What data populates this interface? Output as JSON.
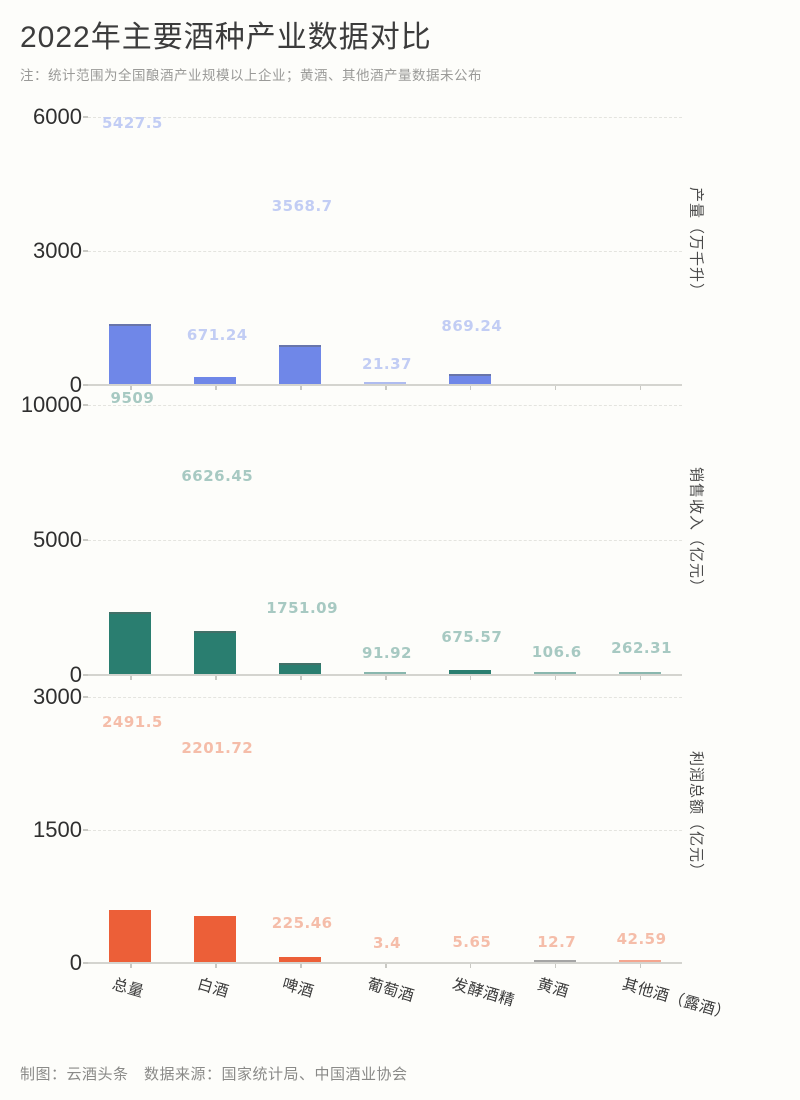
{
  "page": {
    "title": "2022年主要酒种产业数据对比",
    "note": "注：统计范围为全国酿酒产业规模以上企业；黄酒、其他酒产量数据未公布",
    "footer": "制图：云酒头条　数据来源：国家统计局、中国酒业协会"
  },
  "colors": {
    "production_bar": "#6f87e8",
    "production_label": "#c2cdf4",
    "revenue_bar": "#2a7e70",
    "revenue_label": "#a7c9c2",
    "profit_bar": "#ec5f38",
    "profit_label": "#f5bda9",
    "profit_tiny_huangjiu_bar": "#9b9b9b",
    "axis_text": "#2f2f2f",
    "gridline": "#e4e4df",
    "axis_line": "#d4d4cf",
    "category_text": "#3a3a3a"
  },
  "categories": [
    "总量",
    "白酒",
    "啤酒",
    "葡萄酒",
    "发酵酒精",
    "黄酒",
    "其他酒（露酒）"
  ],
  "chart_data": [
    {
      "type": "bar",
      "title": "产量（万千升）",
      "ylabel": "产量（万千升）",
      "categories": [
        "总量",
        "白酒",
        "啤酒",
        "葡萄酒",
        "发酵酒精",
        "黄酒",
        "其他酒（露酒）"
      ],
      "values": [
        5427.5,
        671.24,
        3568.7,
        21.37,
        869.24,
        null,
        null
      ],
      "ylim": [
        0,
        6000
      ],
      "yticks": [
        0,
        3000,
        6000
      ],
      "grid": "dashed",
      "legend": "none"
    },
    {
      "type": "bar",
      "title": "销售收入（亿元）",
      "ylabel": "销售收入（亿元）",
      "categories": [
        "总量",
        "白酒",
        "啤酒",
        "葡萄酒",
        "发酵酒精",
        "黄酒",
        "其他酒（露酒）"
      ],
      "values": [
        9509,
        6626.45,
        1751.09,
        91.92,
        675.57,
        106.6,
        262.31
      ],
      "ylim": [
        0,
        10000
      ],
      "yticks": [
        0,
        5000,
        10000
      ],
      "grid": "dashed",
      "legend": "none"
    },
    {
      "type": "bar",
      "title": "利润总额（亿元）",
      "ylabel": "利润总额（亿元）",
      "categories": [
        "总量",
        "白酒",
        "啤酒",
        "葡萄酒",
        "发酵酒精",
        "黄酒",
        "其他酒（露酒）"
      ],
      "values": [
        2491.5,
        2201.72,
        225.46,
        3.4,
        5.65,
        12.7,
        42.59
      ],
      "ylim": [
        0,
        3000
      ],
      "yticks": [
        0,
        1500,
        3000
      ],
      "grid": "dashed",
      "legend": "none"
    }
  ]
}
